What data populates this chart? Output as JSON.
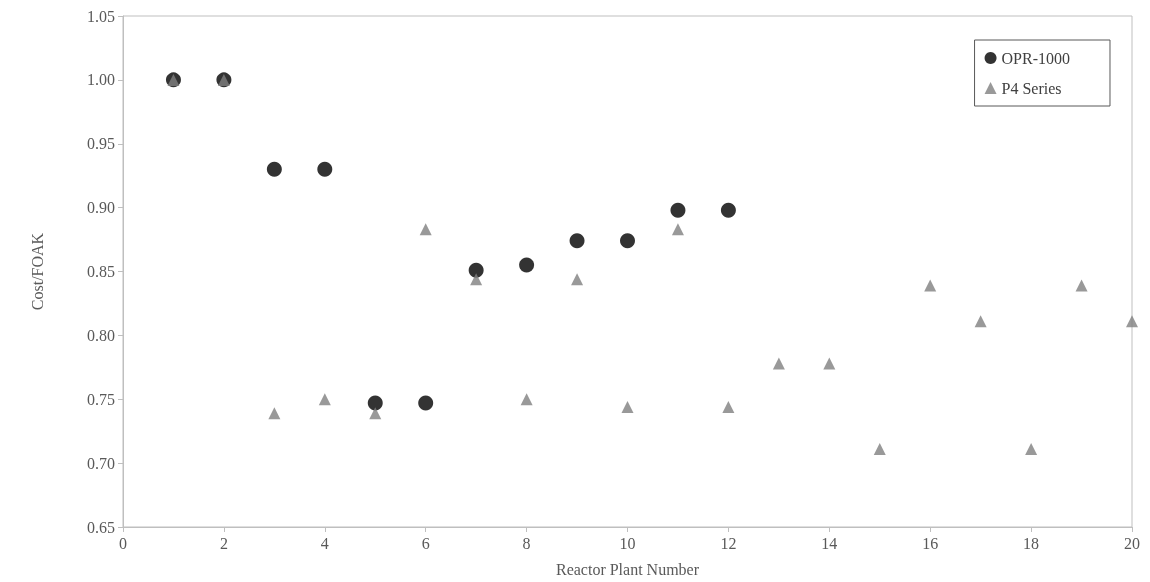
{
  "chart_data": {
    "type": "scatter",
    "xlabel": "Reactor Plant Number",
    "ylabel": "Cost/FOAK",
    "xlim": [
      0,
      20
    ],
    "xticks": [
      0,
      2,
      4,
      6,
      8,
      10,
      12,
      14,
      16,
      18,
      20
    ],
    "ylim": [
      0.65,
      1.05
    ],
    "yticks": [
      {
        "value": 0.65,
        "label": "0.65"
      },
      {
        "value": 0.7,
        "label": "0.70"
      },
      {
        "value": 0.75,
        "label": "0.75"
      },
      {
        "value": 0.8,
        "label": "0.80"
      },
      {
        "value": 0.85,
        "label": "0.85"
      },
      {
        "value": 0.9,
        "label": "0.90"
      },
      {
        "value": 0.95,
        "label": "0.95"
      },
      {
        "value": 1.0,
        "label": "1.00"
      },
      {
        "value": 1.05,
        "label": "1.05"
      }
    ],
    "grid": false,
    "legend": "top right",
    "series": [
      {
        "name": "OPR-1000",
        "color": "#000000",
        "marker": "circle",
        "x": [
          1,
          2,
          3,
          4,
          5,
          6,
          7,
          8,
          9,
          10,
          11,
          12
        ],
        "values": [
          1.0,
          1.0,
          0.93,
          0.93,
          0.747,
          0.747,
          0.851,
          0.855,
          0.874,
          0.874,
          0.898,
          0.898
        ]
      },
      {
        "name": "P4 Series",
        "color": "#808080",
        "marker": "triangle",
        "x": [
          1,
          2,
          3,
          4,
          5,
          6,
          7,
          8,
          9,
          10,
          11,
          12,
          13,
          14,
          15,
          16,
          17,
          18,
          19,
          20
        ],
        "values": [
          1.0,
          1.0,
          0.739,
          0.75,
          0.739,
          0.883,
          0.844,
          0.75,
          0.844,
          0.744,
          0.883,
          0.744,
          0.778,
          0.778,
          0.711,
          0.839,
          0.811,
          0.711,
          0.839,
          0.811
        ]
      }
    ]
  }
}
